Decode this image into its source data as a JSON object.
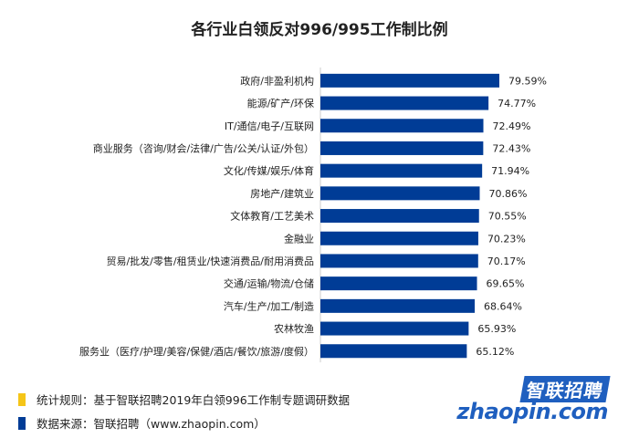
{
  "title": "各行业白领反对996/995工作制比例",
  "chart_data": {
    "type": "bar",
    "orientation": "horizontal",
    "categories": [
      "政府/非盈利机构",
      "能源/矿产/环保",
      "IT/通信/电子/互联网",
      "商业服务（咨询/财会/法律/广告/公关/认证/外包）",
      "文化/传媒/娱乐/体育",
      "房地产/建筑业",
      "文体教育/工艺美术",
      "金融业",
      "贸易/批发/零售/租赁业/快速消费品/耐用消费品",
      "交通/运输/物流/仓储",
      "汽车/生产/加工/制造",
      "农林牧渔",
      "服务业（医疗/护理/美容/保健/酒店/餐饮/旅游/度假）"
    ],
    "values": [
      79.59,
      74.77,
      72.49,
      72.43,
      71.94,
      70.86,
      70.55,
      70.23,
      70.17,
      69.65,
      68.64,
      65.93,
      65.12
    ],
    "value_labels": [
      "79.59%",
      "74.77%",
      "72.49%",
      "72.43%",
      "71.94%",
      "70.86%",
      "70.55%",
      "70.23%",
      "70.17%",
      "69.65%",
      "68.64%",
      "65.93%",
      "65.12%"
    ],
    "bar_color": "#003c96",
    "grid": false
  },
  "footer": {
    "rule": "统计规则：基于智联招聘2019年白领996工作制专题调研数据",
    "source": "数据来源：智联招聘（www.zhaopin.com）",
    "rule_mark_color": "#f5c518",
    "source_mark_color": "#003c96"
  },
  "logo": {
    "cn": "智联招聘",
    "en": "zhaopin.com"
  }
}
